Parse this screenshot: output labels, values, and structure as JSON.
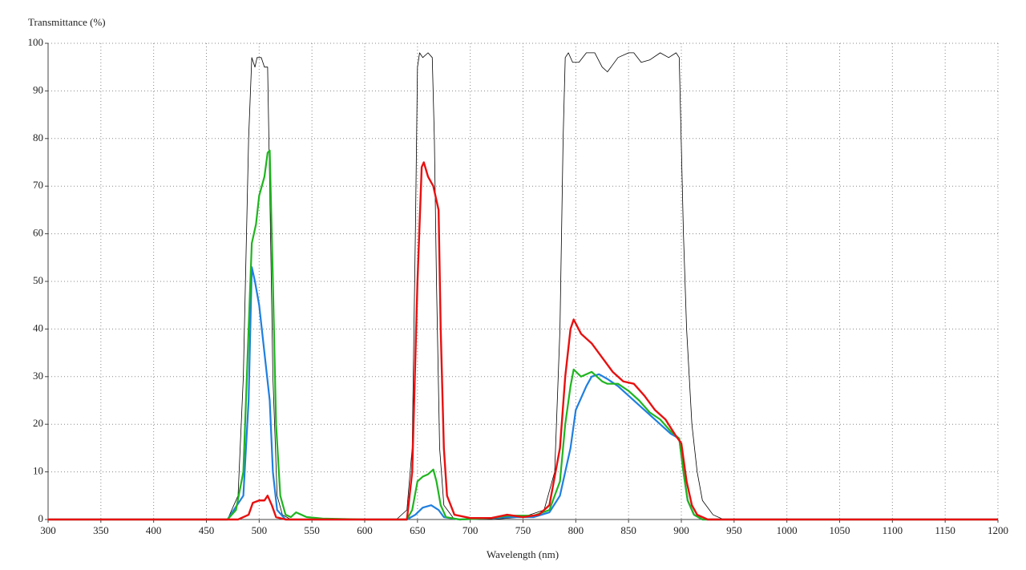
{
  "chart_data": {
    "type": "line",
    "y_label": "Transmittance (%)",
    "x_label": "Wavelength (nm)",
    "xlim": [
      300,
      1200
    ],
    "xticks": [
      300,
      350,
      400,
      450,
      500,
      550,
      600,
      650,
      700,
      750,
      800,
      850,
      900,
      950,
      1000,
      1050,
      1100,
      1150,
      1200
    ],
    "ylim": [
      0,
      100
    ],
    "yticks": [
      0,
      10,
      20,
      30,
      40,
      50,
      60,
      70,
      80,
      90,
      100
    ],
    "grid": true,
    "series": [
      {
        "color": "#000000",
        "width": 0.8,
        "x": [
          300,
          470,
          480,
          485,
          490,
          493,
          496,
          498,
          502,
          505,
          508,
          510,
          513,
          517,
          522,
          530,
          630,
          640,
          645,
          648,
          650,
          652,
          655,
          660,
          664,
          666,
          668,
          671,
          675,
          685,
          720,
          750,
          770,
          780,
          785,
          788,
          790,
          793,
          797,
          803,
          810,
          818,
          825,
          830,
          840,
          850,
          855,
          862,
          870,
          880,
          888,
          895,
          898,
          902,
          905,
          910,
          915,
          920,
          930,
          940,
          1200
        ],
        "values": [
          0,
          0,
          5,
          30,
          80,
          97,
          95,
          97,
          97,
          95,
          95,
          70,
          30,
          5,
          1,
          0,
          0,
          2,
          15,
          60,
          95,
          98,
          97,
          98,
          97,
          80,
          50,
          15,
          3,
          0,
          0,
          0.5,
          2,
          10,
          40,
          80,
          97,
          98,
          96,
          96,
          98,
          98,
          95,
          94,
          97,
          98,
          98,
          96,
          96.5,
          98,
          97,
          98,
          97,
          60,
          40,
          20,
          10,
          4,
          1,
          0,
          0
        ]
      },
      {
        "color": "#1f7fe0",
        "width": 2.2,
        "x": [
          300,
          470,
          485,
          490,
          493,
          496,
          500,
          505,
          510,
          513,
          517,
          525,
          640,
          648,
          655,
          663,
          670,
          675,
          690,
          720,
          735,
          760,
          775,
          785,
          795,
          800,
          810,
          815,
          822,
          830,
          840,
          850,
          860,
          870,
          880,
          890,
          898,
          902,
          906,
          912,
          920,
          1200
        ],
        "values": [
          0,
          0,
          5,
          25,
          53,
          50,
          45,
          35,
          25,
          10,
          2,
          0,
          0,
          1,
          2.5,
          3,
          2,
          0.5,
          0,
          0.3,
          0.5,
          0.5,
          1.5,
          5,
          15,
          23,
          28,
          30,
          30.5,
          29.5,
          28,
          26,
          24,
          22,
          20,
          18,
          17,
          10,
          4,
          1,
          0,
          0
        ]
      },
      {
        "color": "#1fb51f",
        "width": 2.2,
        "x": [
          300,
          470,
          478,
          485,
          490,
          493,
          497,
          500,
          505,
          508,
          510,
          513,
          516,
          520,
          525,
          530,
          535,
          545,
          560,
          600,
          640,
          645,
          650,
          655,
          660,
          665,
          668,
          672,
          677,
          690,
          720,
          735,
          760,
          775,
          785,
          790,
          795,
          798,
          805,
          815,
          825,
          830,
          840,
          850,
          860,
          870,
          880,
          890,
          898,
          902,
          906,
          912,
          920,
          1200
        ],
        "values": [
          0,
          0,
          2,
          10,
          40,
          58,
          62,
          68,
          72,
          77,
          77.5,
          50,
          20,
          5,
          1,
          0.5,
          1.5,
          0.5,
          0.2,
          0,
          0,
          2,
          8,
          9,
          9.5,
          10.5,
          8,
          3,
          0.5,
          0,
          0.3,
          0.8,
          0.8,
          2,
          8,
          20,
          28,
          31.5,
          30,
          31,
          29,
          28.5,
          28.5,
          27,
          25,
          22.5,
          21,
          18.5,
          17,
          10,
          4,
          1,
          0,
          0
        ]
      },
      {
        "color": "#e81010",
        "width": 2.4,
        "x": [
          300,
          480,
          490,
          494,
          500,
          505,
          508,
          512,
          516,
          525,
          640,
          645,
          650,
          654,
          656,
          660,
          665,
          670,
          672,
          675,
          678,
          685,
          700,
          720,
          735,
          750,
          765,
          775,
          785,
          790,
          795,
          798,
          805,
          815,
          825,
          835,
          845,
          855,
          865,
          875,
          885,
          895,
          900,
          905,
          910,
          915,
          925,
          1200
        ],
        "values": [
          0,
          0,
          1,
          3.5,
          4,
          4,
          5,
          3,
          0.5,
          0,
          0,
          10,
          50,
          74,
          75,
          72,
          70,
          65,
          40,
          15,
          5,
          1,
          0.3,
          0.3,
          1,
          0.5,
          1,
          3,
          15,
          30,
          40,
          42,
          39,
          37,
          34,
          31,
          29,
          28.5,
          26,
          23,
          21,
          17.5,
          16,
          8,
          3,
          1,
          0,
          0
        ]
      }
    ]
  }
}
